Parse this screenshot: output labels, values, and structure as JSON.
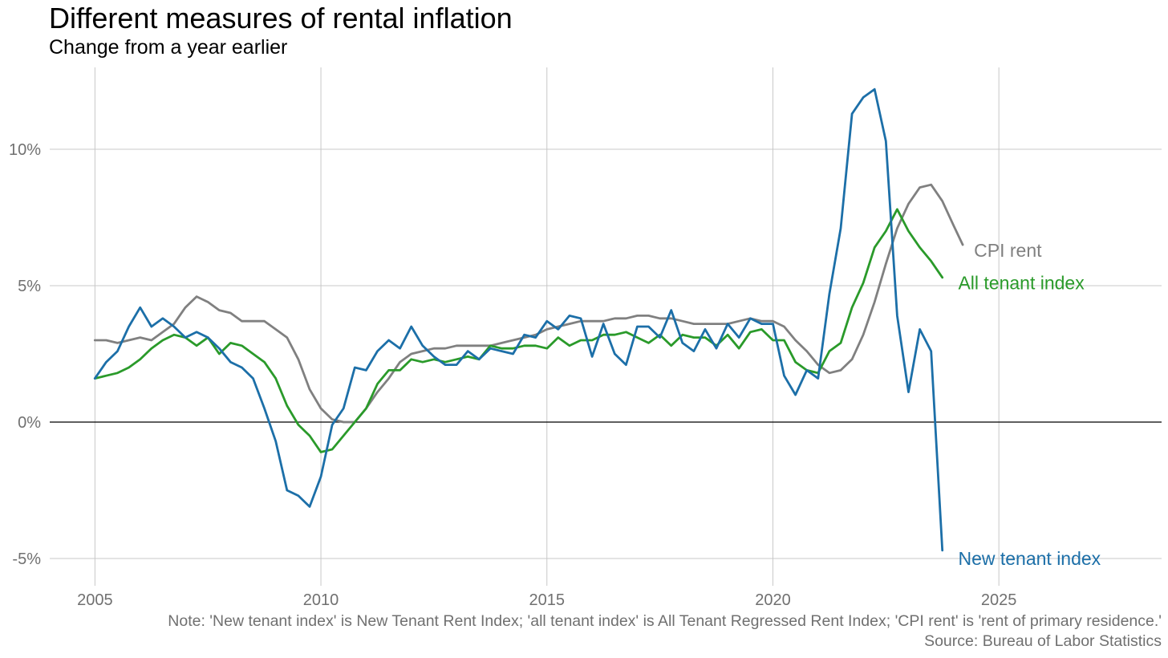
{
  "title": "Different measures of rental inflation",
  "subtitle": "Change from a year earlier",
  "note": "Note: 'New tenant index' is New Tenant Rent Index; 'all tenant index' is All Tenant Regressed Rent Index; 'CPI rent' is 'rent of primary residence.'",
  "source": "Source: Bureau of Labor Statistics",
  "colors": {
    "cpi": "#808080",
    "all": "#2a9a2a",
    "new": "#1c6fa8",
    "grid": "#c8c8c8",
    "zero": "#000000",
    "tick": "#707070"
  },
  "chart_data": {
    "type": "line",
    "xlim": [
      2004,
      2028.6
    ],
    "ylim": [
      -6,
      13
    ],
    "x_ticks": [
      2005,
      2010,
      2015,
      2020,
      2025
    ],
    "x_tick_labels": [
      "2005",
      "2010",
      "2015",
      "2020",
      "2025"
    ],
    "y_ticks": [
      -5,
      0,
      5,
      10
    ],
    "y_tick_labels": [
      "-5%",
      "0%",
      "5%",
      "10%"
    ],
    "grid": true,
    "series": [
      {
        "name": "CPI rent",
        "key": "cpi",
        "label_pos": [
          2024.45,
          6.3
        ],
        "points": [
          [
            2005.0,
            3.0
          ],
          [
            2005.25,
            3.0
          ],
          [
            2005.5,
            2.9
          ],
          [
            2005.75,
            3.0
          ],
          [
            2006.0,
            3.1
          ],
          [
            2006.25,
            3.0
          ],
          [
            2006.5,
            3.3
          ],
          [
            2006.75,
            3.6
          ],
          [
            2007.0,
            4.2
          ],
          [
            2007.25,
            4.6
          ],
          [
            2007.5,
            4.4
          ],
          [
            2007.75,
            4.1
          ],
          [
            2008.0,
            4.0
          ],
          [
            2008.25,
            3.7
          ],
          [
            2008.5,
            3.7
          ],
          [
            2008.75,
            3.7
          ],
          [
            2009.0,
            3.4
          ],
          [
            2009.25,
            3.1
          ],
          [
            2009.5,
            2.3
          ],
          [
            2009.75,
            1.2
          ],
          [
            2010.0,
            0.5
          ],
          [
            2010.25,
            0.1
          ],
          [
            2010.5,
            0.0
          ],
          [
            2010.75,
            0.0
          ],
          [
            2011.0,
            0.5
          ],
          [
            2011.25,
            1.1
          ],
          [
            2011.5,
            1.6
          ],
          [
            2011.75,
            2.2
          ],
          [
            2012.0,
            2.5
          ],
          [
            2012.25,
            2.6
          ],
          [
            2012.5,
            2.7
          ],
          [
            2012.75,
            2.7
          ],
          [
            2013.0,
            2.8
          ],
          [
            2013.25,
            2.8
          ],
          [
            2013.5,
            2.8
          ],
          [
            2013.75,
            2.8
          ],
          [
            2014.0,
            2.9
          ],
          [
            2014.25,
            3.0
          ],
          [
            2014.5,
            3.1
          ],
          [
            2014.75,
            3.2
          ],
          [
            2015.0,
            3.4
          ],
          [
            2015.25,
            3.5
          ],
          [
            2015.5,
            3.6
          ],
          [
            2015.75,
            3.7
          ],
          [
            2016.0,
            3.7
          ],
          [
            2016.25,
            3.7
          ],
          [
            2016.5,
            3.8
          ],
          [
            2016.75,
            3.8
          ],
          [
            2017.0,
            3.9
          ],
          [
            2017.25,
            3.9
          ],
          [
            2017.5,
            3.8
          ],
          [
            2017.75,
            3.8
          ],
          [
            2018.0,
            3.7
          ],
          [
            2018.25,
            3.6
          ],
          [
            2018.5,
            3.6
          ],
          [
            2018.75,
            3.6
          ],
          [
            2019.0,
            3.6
          ],
          [
            2019.25,
            3.7
          ],
          [
            2019.5,
            3.8
          ],
          [
            2019.75,
            3.7
          ],
          [
            2020.0,
            3.7
          ],
          [
            2020.25,
            3.5
          ],
          [
            2020.5,
            3.0
          ],
          [
            2020.75,
            2.6
          ],
          [
            2021.0,
            2.1
          ],
          [
            2021.25,
            1.8
          ],
          [
            2021.5,
            1.9
          ],
          [
            2021.75,
            2.3
          ],
          [
            2022.0,
            3.2
          ],
          [
            2022.25,
            4.4
          ],
          [
            2022.5,
            5.8
          ],
          [
            2022.75,
            7.1
          ],
          [
            2023.0,
            8.0
          ],
          [
            2023.25,
            8.6
          ],
          [
            2023.5,
            8.7
          ],
          [
            2023.75,
            8.1
          ],
          [
            2024.0,
            7.2
          ],
          [
            2024.2,
            6.5
          ]
        ]
      },
      {
        "name": "All tenant index",
        "key": "all",
        "label_pos": [
          2024.1,
          5.1
        ],
        "points": [
          [
            2005.0,
            1.6
          ],
          [
            2005.25,
            1.7
          ],
          [
            2005.5,
            1.8
          ],
          [
            2005.75,
            2.0
          ],
          [
            2006.0,
            2.3
          ],
          [
            2006.25,
            2.7
          ],
          [
            2006.5,
            3.0
          ],
          [
            2006.75,
            3.2
          ],
          [
            2007.0,
            3.1
          ],
          [
            2007.25,
            2.8
          ],
          [
            2007.5,
            3.1
          ],
          [
            2007.75,
            2.5
          ],
          [
            2008.0,
            2.9
          ],
          [
            2008.25,
            2.8
          ],
          [
            2008.5,
            2.5
          ],
          [
            2008.75,
            2.2
          ],
          [
            2009.0,
            1.6
          ],
          [
            2009.25,
            0.6
          ],
          [
            2009.5,
            -0.1
          ],
          [
            2009.75,
            -0.5
          ],
          [
            2010.0,
            -1.1
          ],
          [
            2010.25,
            -1.0
          ],
          [
            2010.5,
            -0.5
          ],
          [
            2010.75,
            0.0
          ],
          [
            2011.0,
            0.5
          ],
          [
            2011.25,
            1.4
          ],
          [
            2011.5,
            1.9
          ],
          [
            2011.75,
            1.9
          ],
          [
            2012.0,
            2.3
          ],
          [
            2012.25,
            2.2
          ],
          [
            2012.5,
            2.3
          ],
          [
            2012.75,
            2.2
          ],
          [
            2013.0,
            2.3
          ],
          [
            2013.25,
            2.4
          ],
          [
            2013.5,
            2.3
          ],
          [
            2013.75,
            2.8
          ],
          [
            2014.0,
            2.7
          ],
          [
            2014.25,
            2.7
          ],
          [
            2014.5,
            2.8
          ],
          [
            2014.75,
            2.8
          ],
          [
            2015.0,
            2.7
          ],
          [
            2015.25,
            3.1
          ],
          [
            2015.5,
            2.8
          ],
          [
            2015.75,
            3.0
          ],
          [
            2016.0,
            3.0
          ],
          [
            2016.25,
            3.2
          ],
          [
            2016.5,
            3.2
          ],
          [
            2016.75,
            3.3
          ],
          [
            2017.0,
            3.1
          ],
          [
            2017.25,
            2.9
          ],
          [
            2017.5,
            3.2
          ],
          [
            2017.75,
            2.8
          ],
          [
            2018.0,
            3.2
          ],
          [
            2018.25,
            3.1
          ],
          [
            2018.5,
            3.1
          ],
          [
            2018.75,
            2.8
          ],
          [
            2019.0,
            3.2
          ],
          [
            2019.25,
            2.7
          ],
          [
            2019.5,
            3.3
          ],
          [
            2019.75,
            3.4
          ],
          [
            2020.0,
            3.0
          ],
          [
            2020.25,
            3.0
          ],
          [
            2020.5,
            2.2
          ],
          [
            2020.75,
            1.9
          ],
          [
            2021.0,
            1.8
          ],
          [
            2021.25,
            2.6
          ],
          [
            2021.5,
            2.9
          ],
          [
            2021.75,
            4.2
          ],
          [
            2022.0,
            5.1
          ],
          [
            2022.25,
            6.4
          ],
          [
            2022.5,
            7.0
          ],
          [
            2022.75,
            7.8
          ],
          [
            2023.0,
            7.0
          ],
          [
            2023.25,
            6.4
          ],
          [
            2023.5,
            5.9
          ],
          [
            2023.75,
            5.3
          ]
        ]
      },
      {
        "name": "New tenant index",
        "key": "new",
        "label_pos": [
          2024.1,
          -5.0
        ],
        "points": [
          [
            2005.0,
            1.6
          ],
          [
            2005.25,
            2.2
          ],
          [
            2005.5,
            2.6
          ],
          [
            2005.75,
            3.5
          ],
          [
            2006.0,
            4.2
          ],
          [
            2006.25,
            3.5
          ],
          [
            2006.5,
            3.8
          ],
          [
            2006.75,
            3.5
          ],
          [
            2007.0,
            3.1
          ],
          [
            2007.25,
            3.3
          ],
          [
            2007.5,
            3.1
          ],
          [
            2007.75,
            2.7
          ],
          [
            2008.0,
            2.2
          ],
          [
            2008.25,
            2.0
          ],
          [
            2008.5,
            1.6
          ],
          [
            2008.75,
            0.5
          ],
          [
            2009.0,
            -0.7
          ],
          [
            2009.25,
            -2.5
          ],
          [
            2009.5,
            -2.7
          ],
          [
            2009.75,
            -3.1
          ],
          [
            2010.0,
            -2.0
          ],
          [
            2010.25,
            -0.1
          ],
          [
            2010.5,
            0.5
          ],
          [
            2010.75,
            2.0
          ],
          [
            2011.0,
            1.9
          ],
          [
            2011.25,
            2.6
          ],
          [
            2011.5,
            3.0
          ],
          [
            2011.75,
            2.7
          ],
          [
            2012.0,
            3.5
          ],
          [
            2012.25,
            2.8
          ],
          [
            2012.5,
            2.4
          ],
          [
            2012.75,
            2.1
          ],
          [
            2013.0,
            2.1
          ],
          [
            2013.25,
            2.6
          ],
          [
            2013.5,
            2.3
          ],
          [
            2013.75,
            2.7
          ],
          [
            2014.0,
            2.6
          ],
          [
            2014.25,
            2.5
          ],
          [
            2014.5,
            3.2
          ],
          [
            2014.75,
            3.1
          ],
          [
            2015.0,
            3.7
          ],
          [
            2015.25,
            3.4
          ],
          [
            2015.5,
            3.9
          ],
          [
            2015.75,
            3.8
          ],
          [
            2016.0,
            2.4
          ],
          [
            2016.25,
            3.6
          ],
          [
            2016.5,
            2.5
          ],
          [
            2016.75,
            2.1
          ],
          [
            2017.0,
            3.5
          ],
          [
            2017.25,
            3.5
          ],
          [
            2017.5,
            3.1
          ],
          [
            2017.75,
            4.1
          ],
          [
            2018.0,
            2.9
          ],
          [
            2018.25,
            2.6
          ],
          [
            2018.5,
            3.4
          ],
          [
            2018.75,
            2.7
          ],
          [
            2019.0,
            3.6
          ],
          [
            2019.25,
            3.1
          ],
          [
            2019.5,
            3.8
          ],
          [
            2019.75,
            3.6
          ],
          [
            2020.0,
            3.6
          ],
          [
            2020.25,
            1.7
          ],
          [
            2020.5,
            1.0
          ],
          [
            2020.75,
            1.9
          ],
          [
            2021.0,
            1.6
          ],
          [
            2021.25,
            4.7
          ],
          [
            2021.5,
            7.1
          ],
          [
            2021.75,
            11.3
          ],
          [
            2022.0,
            11.9
          ],
          [
            2022.25,
            12.2
          ],
          [
            2022.5,
            10.3
          ],
          [
            2022.75,
            3.9
          ],
          [
            2023.0,
            1.1
          ],
          [
            2023.25,
            3.4
          ],
          [
            2023.5,
            2.6
          ],
          [
            2023.75,
            -4.7
          ]
        ]
      }
    ]
  }
}
